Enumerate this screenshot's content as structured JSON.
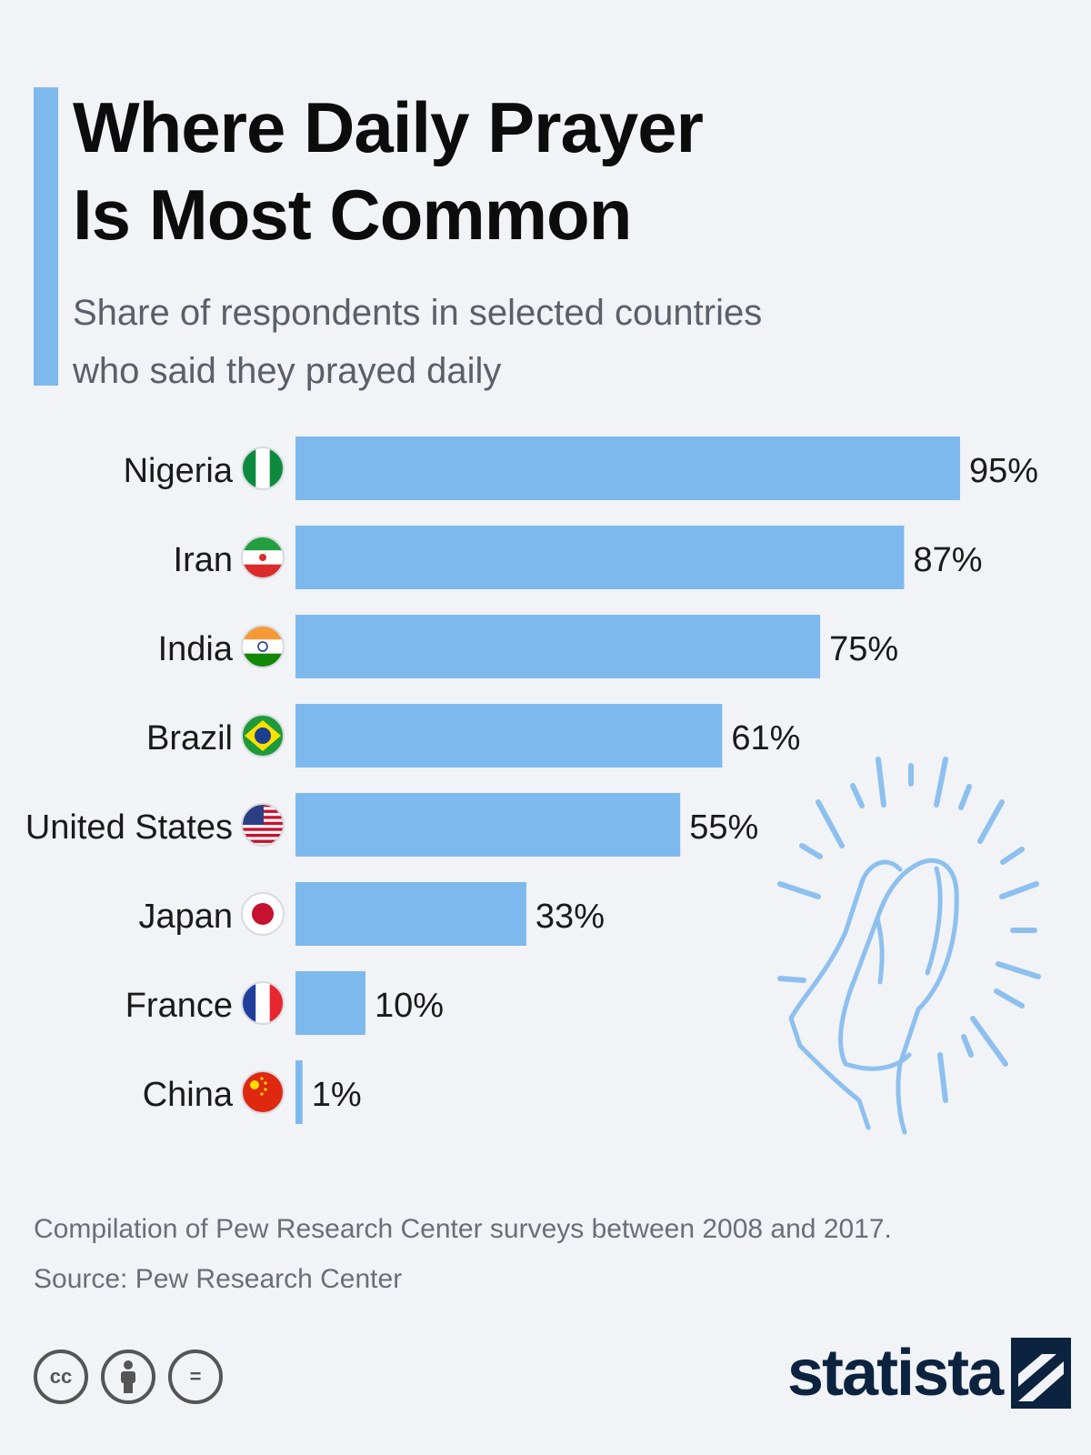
{
  "header": {
    "title_lines": [
      "Where Daily Prayer",
      "Is Most Common"
    ],
    "subtitle_lines": [
      "Share of respondents in selected countries",
      "who said they prayed daily"
    ]
  },
  "chart_data": {
    "type": "bar",
    "orientation": "horizontal",
    "title": "Where Daily Prayer Is Most Common",
    "subtitle": "Share of respondents in selected countries who said they prayed daily",
    "categories": [
      "Nigeria",
      "Iran",
      "India",
      "Brazil",
      "United States",
      "Japan",
      "France",
      "China"
    ],
    "values": [
      95,
      87,
      75,
      61,
      55,
      33,
      10,
      1
    ],
    "value_labels": [
      "95%",
      "87%",
      "75%",
      "61%",
      "55%",
      "33%",
      "10%",
      "1%"
    ],
    "unit": "%",
    "xlim": [
      0,
      100
    ],
    "grid": false,
    "legend": "none",
    "bar_color": "#7eb9ee"
  },
  "footer": {
    "note": "Compilation of Pew Research Center surveys between 2008 and 2017.",
    "source": "Source: Pew Research Center",
    "license_icons": [
      "cc-icon",
      "by-icon",
      "nd-icon"
    ],
    "license_texts": [
      "cc",
      "",
      "="
    ],
    "brand": "statista"
  },
  "colors": {
    "accent": "#7eb9ee",
    "brand": "#0c2340",
    "background": "#f1f3f6"
  }
}
